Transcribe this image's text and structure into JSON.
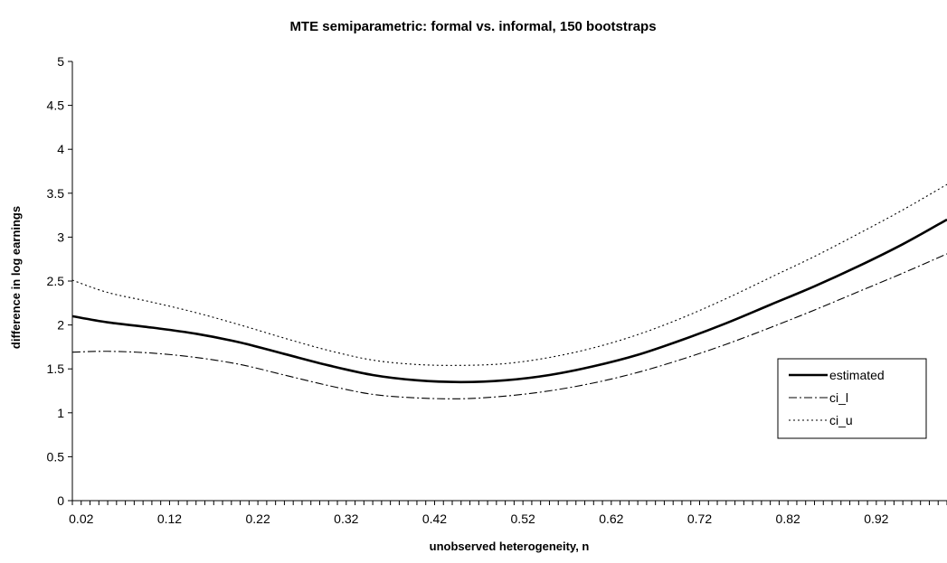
{
  "chart_data": {
    "type": "line",
    "title": "MTE semiparametric: formal vs. informal, 150 bootstraps",
    "xlabel": "unobserved heterogeneity, n",
    "ylabel": "difference in log earnings",
    "xlim": [
      0.01,
      1.0
    ],
    "ylim": [
      0,
      5
    ],
    "x_ticks": [
      "0.02",
      "0.12",
      "0.22",
      "0.32",
      "0.42",
      "0.52",
      "0.62",
      "0.72",
      "0.82",
      "0.92"
    ],
    "y_ticks": [
      "0",
      "0.5",
      "1",
      "1.5",
      "2",
      "2.5",
      "3",
      "3.5",
      "4",
      "4.5",
      "5"
    ],
    "grid": false,
    "legend_position": "right",
    "series": [
      {
        "name": "estimated",
        "style": "solid",
        "x": [
          0.01,
          0.05,
          0.1,
          0.15,
          0.2,
          0.25,
          0.3,
          0.35,
          0.4,
          0.45,
          0.5,
          0.55,
          0.6,
          0.65,
          0.7,
          0.75,
          0.8,
          0.85,
          0.9,
          0.95,
          1.0
        ],
        "y": [
          2.1,
          2.03,
          1.97,
          1.9,
          1.8,
          1.67,
          1.54,
          1.43,
          1.37,
          1.35,
          1.37,
          1.43,
          1.53,
          1.66,
          1.83,
          2.02,
          2.23,
          2.44,
          2.67,
          2.92,
          3.2
        ]
      },
      {
        "name": "ci_l",
        "style": "dashdot",
        "x": [
          0.01,
          0.05,
          0.1,
          0.15,
          0.2,
          0.25,
          0.3,
          0.35,
          0.4,
          0.45,
          0.5,
          0.55,
          0.6,
          0.65,
          0.7,
          0.75,
          0.8,
          0.85,
          0.9,
          0.95,
          1.0
        ],
        "y": [
          1.69,
          1.7,
          1.68,
          1.63,
          1.55,
          1.43,
          1.31,
          1.21,
          1.17,
          1.16,
          1.19,
          1.25,
          1.34,
          1.46,
          1.61,
          1.78,
          1.97,
          2.17,
          2.38,
          2.59,
          2.81
        ]
      },
      {
        "name": "ci_u",
        "style": "dotted",
        "x": [
          0.01,
          0.05,
          0.1,
          0.15,
          0.2,
          0.25,
          0.3,
          0.35,
          0.4,
          0.45,
          0.5,
          0.55,
          0.6,
          0.65,
          0.7,
          0.75,
          0.8,
          0.85,
          0.9,
          0.95,
          1.0
        ],
        "y": [
          2.51,
          2.37,
          2.26,
          2.14,
          2.0,
          1.85,
          1.71,
          1.6,
          1.55,
          1.54,
          1.56,
          1.63,
          1.74,
          1.89,
          2.08,
          2.3,
          2.54,
          2.78,
          3.04,
          3.31,
          3.6
        ]
      }
    ]
  }
}
